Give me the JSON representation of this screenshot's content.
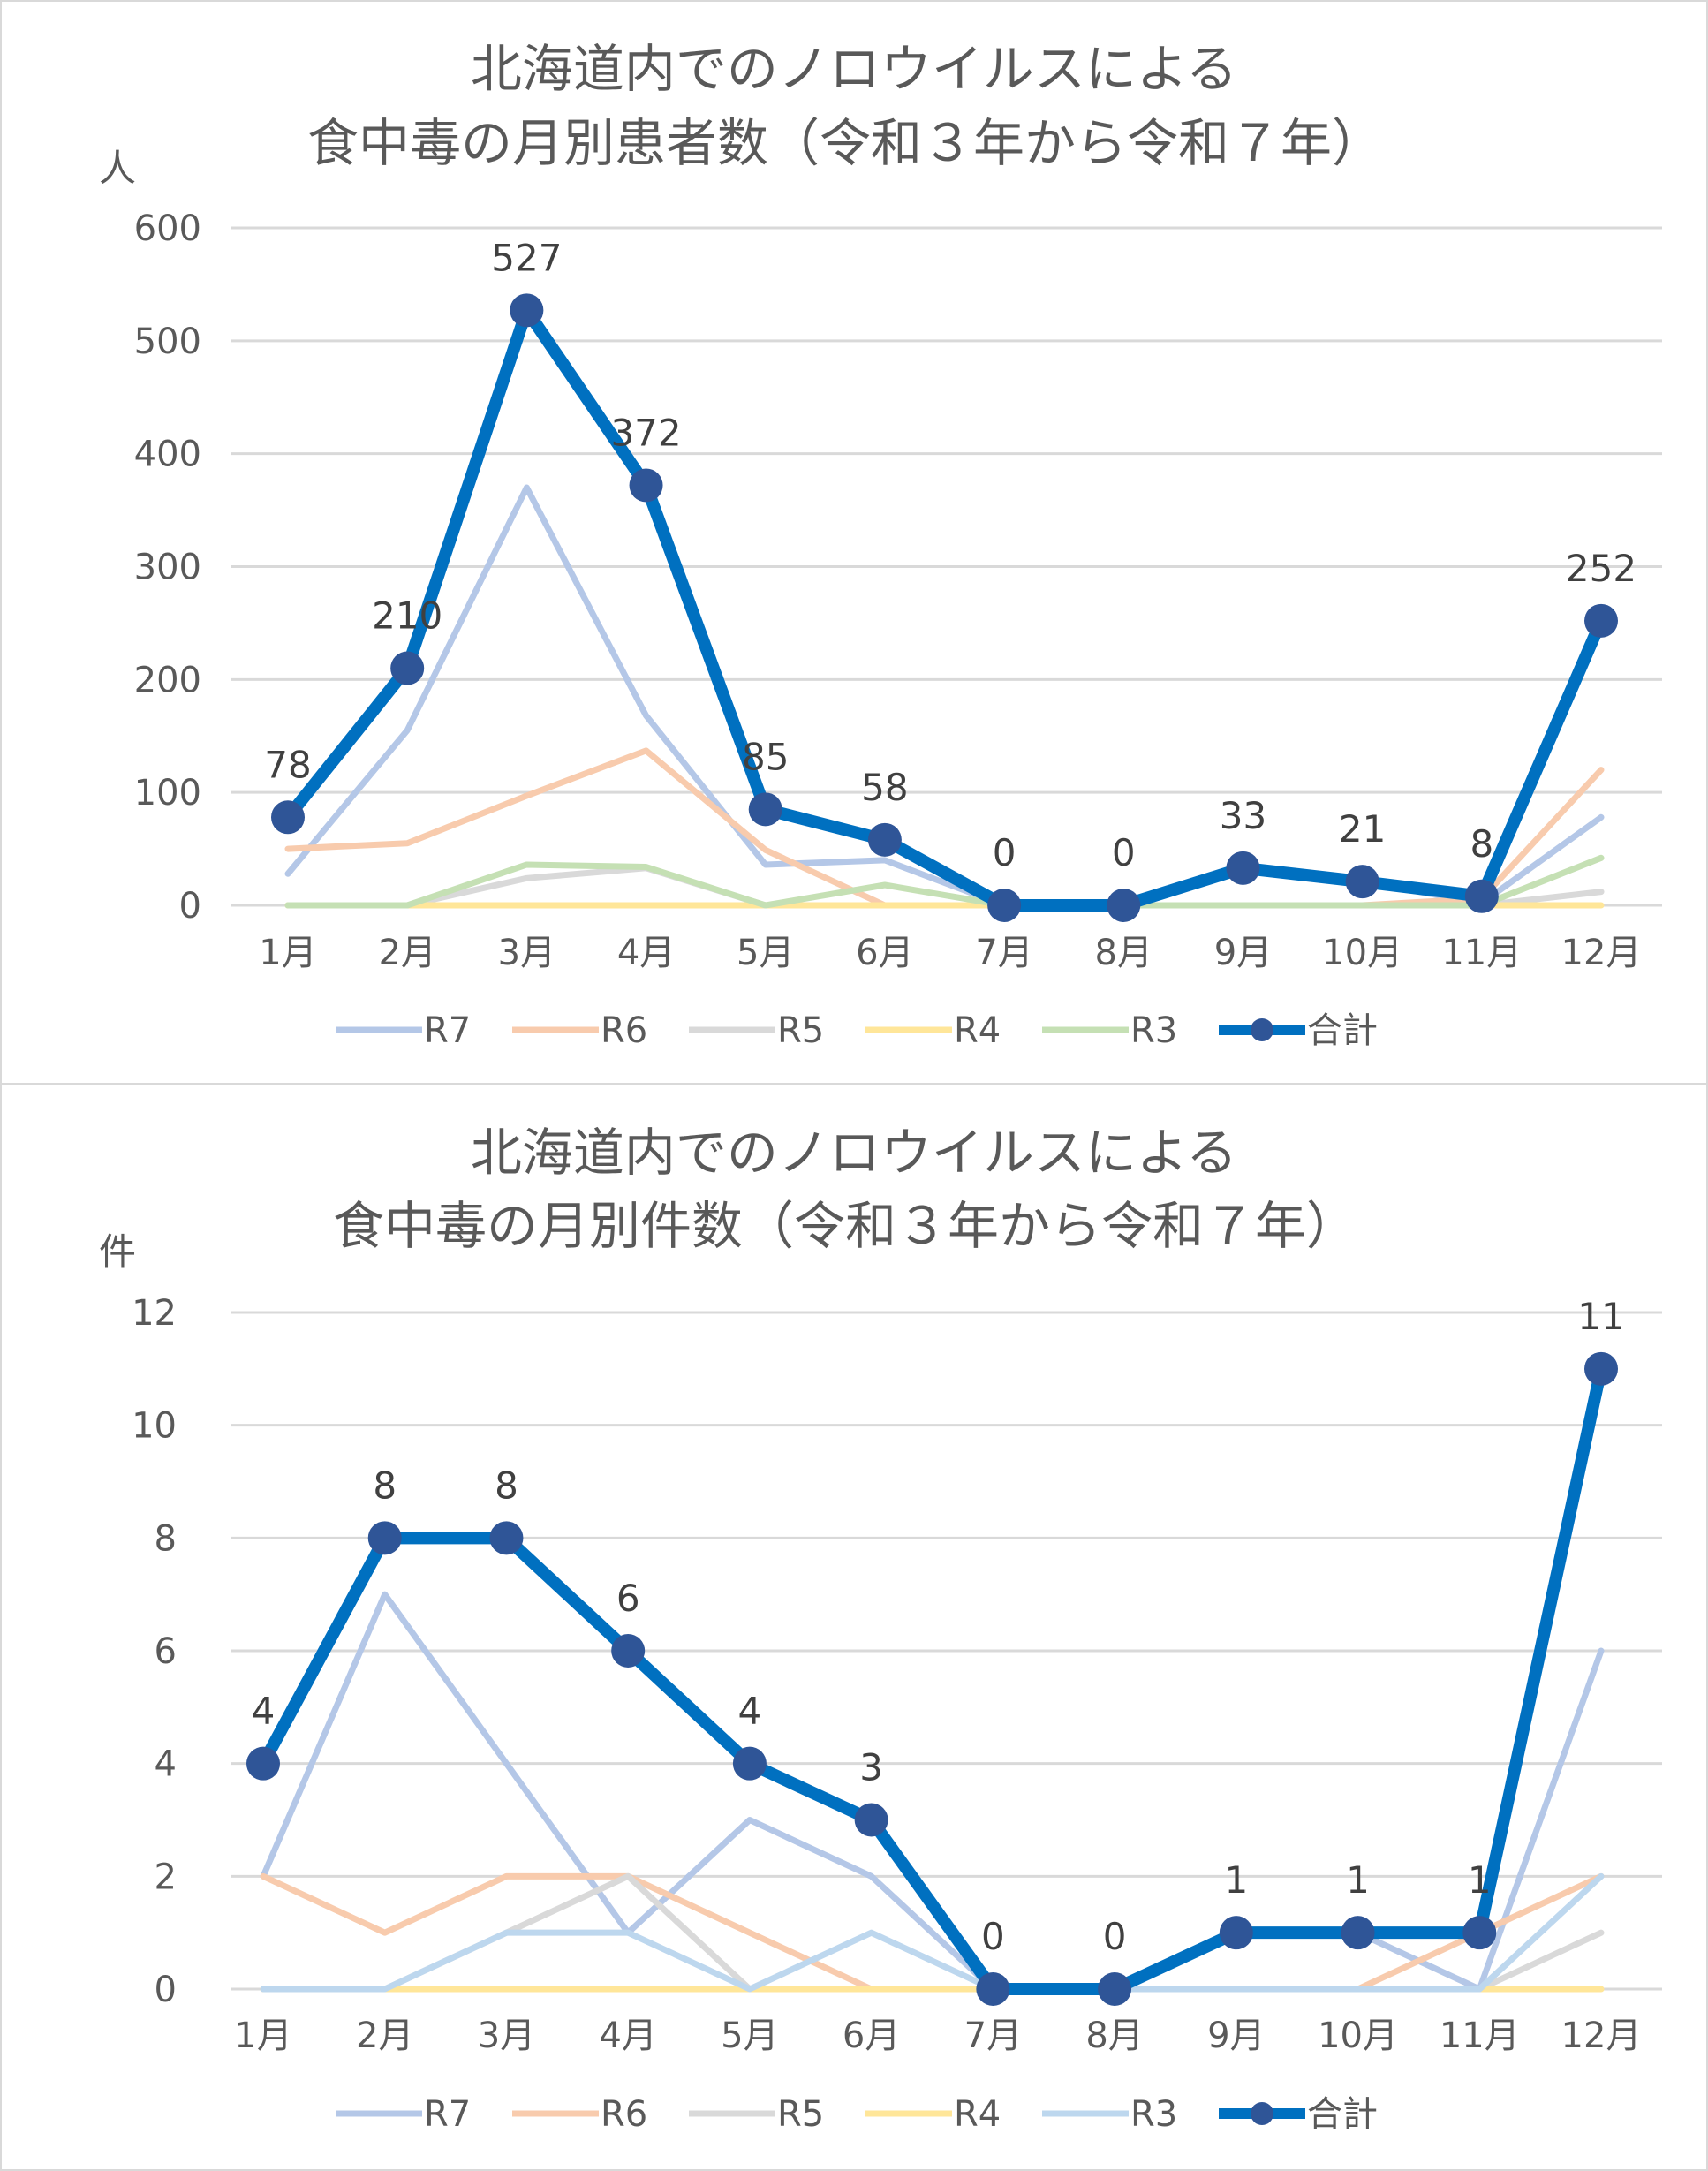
{
  "chart_data": [
    {
      "type": "line",
      "title": [
        "北海道内でのノロウイルスによる",
        "食中毒の月別患者数（令和３年から令和７年）"
      ],
      "ylabel": "人",
      "categories": [
        "1月",
        "2月",
        "3月",
        "4月",
        "5月",
        "6月",
        "7月",
        "8月",
        "9月",
        "10月",
        "11月",
        "12月"
      ],
      "ylim": [
        0,
        600
      ],
      "yticks": [
        0,
        100,
        200,
        300,
        400,
        500,
        600
      ],
      "grid": true,
      "legend": "bottom",
      "series": [
        {
          "name": "R7",
          "color": "#B4C7E7",
          "values": [
            28,
            155,
            370,
            168,
            36,
            40,
            0,
            0,
            33,
            21,
            2,
            78
          ]
        },
        {
          "name": "R6",
          "color": "#F8CBAD",
          "values": [
            50,
            55,
            97,
            137,
            49,
            0,
            0,
            0,
            0,
            0,
            6,
            120
          ]
        },
        {
          "name": "R5",
          "color": "#D9D9D9",
          "values": [
            0,
            0,
            24,
            33,
            0,
            0,
            0,
            0,
            0,
            0,
            0,
            12
          ]
        },
        {
          "name": "R4",
          "color": "#FFE699",
          "values": [
            0,
            0,
            0,
            0,
            0,
            0,
            0,
            0,
            0,
            0,
            0,
            0
          ]
        },
        {
          "name": "R3",
          "color": "#C5E0B4",
          "values": [
            0,
            0,
            36,
            34,
            0,
            18,
            0,
            0,
            0,
            0,
            0,
            42
          ]
        },
        {
          "name": "合計",
          "color": "#0070C0",
          "marker_color": "#2F5597",
          "values": [
            78,
            210,
            527,
            372,
            85,
            58,
            0,
            0,
            33,
            21,
            8,
            252
          ],
          "data_labels": true
        }
      ]
    },
    {
      "type": "line",
      "title": [
        "北海道内でのノロウイルスによる",
        "食中毒の月別件数（令和３年から令和７年）"
      ],
      "ylabel": "件",
      "categories": [
        "1月",
        "2月",
        "3月",
        "4月",
        "5月",
        "6月",
        "7月",
        "8月",
        "9月",
        "10月",
        "11月",
        "12月"
      ],
      "ylim": [
        0,
        12
      ],
      "yticks": [
        0,
        2,
        4,
        6,
        8,
        10,
        12
      ],
      "grid": true,
      "legend": "bottom",
      "series": [
        {
          "name": "R7",
          "color": "#B4C7E7",
          "values": [
            2,
            7,
            4,
            1,
            3,
            2,
            0,
            0,
            1,
            1,
            0,
            6
          ]
        },
        {
          "name": "R6",
          "color": "#F8CBAD",
          "values": [
            2,
            1,
            2,
            2,
            1,
            0,
            0,
            0,
            0,
            0,
            1,
            2
          ]
        },
        {
          "name": "R5",
          "color": "#D9D9D9",
          "values": [
            0,
            0,
            1,
            2,
            0,
            0,
            0,
            0,
            0,
            0,
            0,
            1
          ]
        },
        {
          "name": "R4",
          "color": "#FFE699",
          "values": [
            0,
            0,
            0,
            0,
            0,
            0,
            0,
            0,
            0,
            0,
            0,
            0
          ]
        },
        {
          "name": "R3",
          "color": "#BDD7EE",
          "values": [
            0,
            0,
            1,
            1,
            0,
            1,
            0,
            0,
            0,
            0,
            0,
            2
          ]
        },
        {
          "name": "合計",
          "color": "#0070C0",
          "marker_color": "#2F5597",
          "values": [
            4,
            8,
            8,
            6,
            4,
            3,
            0,
            0,
            1,
            1,
            1,
            11
          ],
          "data_labels": true
        }
      ]
    }
  ]
}
